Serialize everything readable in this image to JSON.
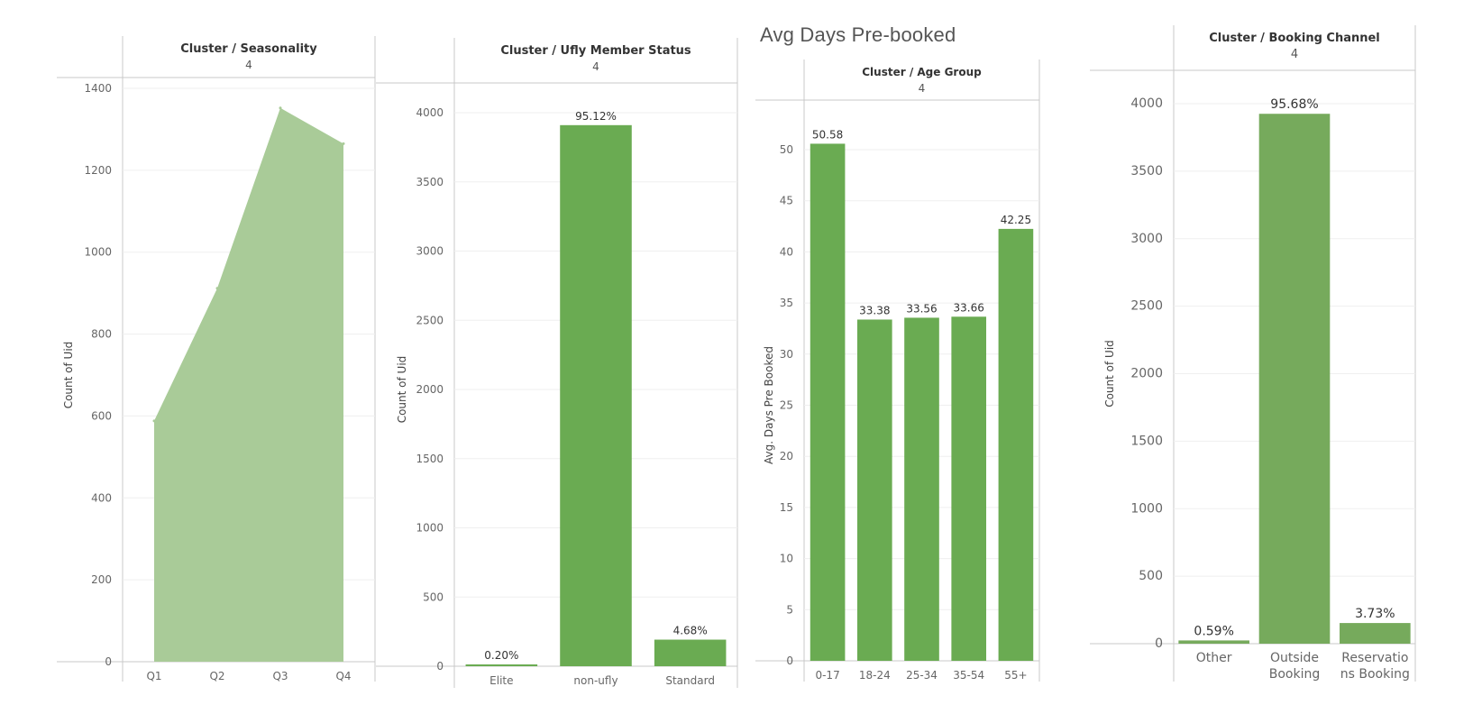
{
  "page": {
    "section_title": "Avg Days Pre-booked"
  },
  "colors": {
    "bar": "#6aab52",
    "bar_dark": "#76aa5c",
    "area": "#a9cb98",
    "axis": "#c8c8c8",
    "grid": "#efefef",
    "text": "#555555",
    "title": "#333333"
  },
  "chart_data": [
    {
      "type": "area",
      "title": "Cluster / Seasonality",
      "subtitle": "4",
      "xlabel": "",
      "ylabel": "Count of Uid",
      "categories": [
        "Q1",
        "Q2",
        "Q3",
        "Q4"
      ],
      "values": [
        588,
        912,
        1352,
        1265
      ],
      "ylim": [
        0,
        1400
      ],
      "yticks": [
        0,
        200,
        400,
        600,
        800,
        1000,
        1200,
        1400
      ],
      "yticks_display": [
        "0",
        "200",
        "400",
        "600",
        "800",
        "1000",
        "1200",
        "1400"
      ],
      "data_labels": [],
      "grid": true
    },
    {
      "type": "bar",
      "title": "Cluster / Ufly Member Status",
      "subtitle": "4",
      "xlabel": "",
      "ylabel": "Count of Uid",
      "categories": [
        "Elite",
        "non-ufly",
        "Standard"
      ],
      "values": [
        8,
        3910,
        192
      ],
      "ylim": [
        0,
        4000
      ],
      "yticks": [
        0,
        500,
        1000,
        1500,
        2000,
        2500,
        3000,
        3500,
        4000
      ],
      "yticks_display": [
        "0",
        "500",
        "1000",
        "1500",
        "2000",
        "2500",
        "3000",
        "3500",
        "4000"
      ],
      "data_labels": [
        "0.20%",
        "95.12%",
        "4.68%"
      ],
      "grid": true
    },
    {
      "type": "bar",
      "title": "Cluster / Age Group",
      "subtitle": "4",
      "xlabel": "",
      "ylabel": "Avg. Days Pre Booked",
      "categories": [
        "0-17",
        "18-24",
        "25-34",
        "35-54",
        "55+"
      ],
      "values": [
        50.58,
        33.38,
        33.56,
        33.66,
        42.25
      ],
      "ylim": [
        0,
        50
      ],
      "yticks": [
        0,
        5,
        10,
        15,
        20,
        25,
        30,
        35,
        40,
        45,
        50
      ],
      "yticks_display": [
        "0",
        "5",
        "10",
        "15",
        "20",
        "25",
        "30",
        "35",
        "40",
        "45",
        "50"
      ],
      "data_labels": [
        "50.58",
        "33.38",
        "33.56",
        "33.66",
        "42.25"
      ],
      "grid": true
    },
    {
      "type": "bar",
      "title": "Cluster / Booking Channel",
      "subtitle": "4",
      "xlabel": "",
      "ylabel": "Count of Uid",
      "categories": [
        "Other",
        "Outside Booking",
        "Reservations Booking"
      ],
      "categories_display": [
        [
          "Other"
        ],
        [
          "Outside",
          "Booking"
        ],
        [
          "Reservatio",
          "ns Booking"
        ]
      ],
      "values": [
        24,
        3925,
        153
      ],
      "ylim": [
        0,
        4000
      ],
      "yticks": [
        0,
        500,
        1000,
        1500,
        2000,
        2500,
        3000,
        3500,
        4000
      ],
      "yticks_display": [
        "0",
        "500",
        "1000",
        "1500",
        "2000",
        "2500",
        "3000",
        "3500",
        "4000"
      ],
      "data_labels": [
        "0.59%",
        "95.68%",
        "3.73%"
      ],
      "grid": true
    }
  ]
}
